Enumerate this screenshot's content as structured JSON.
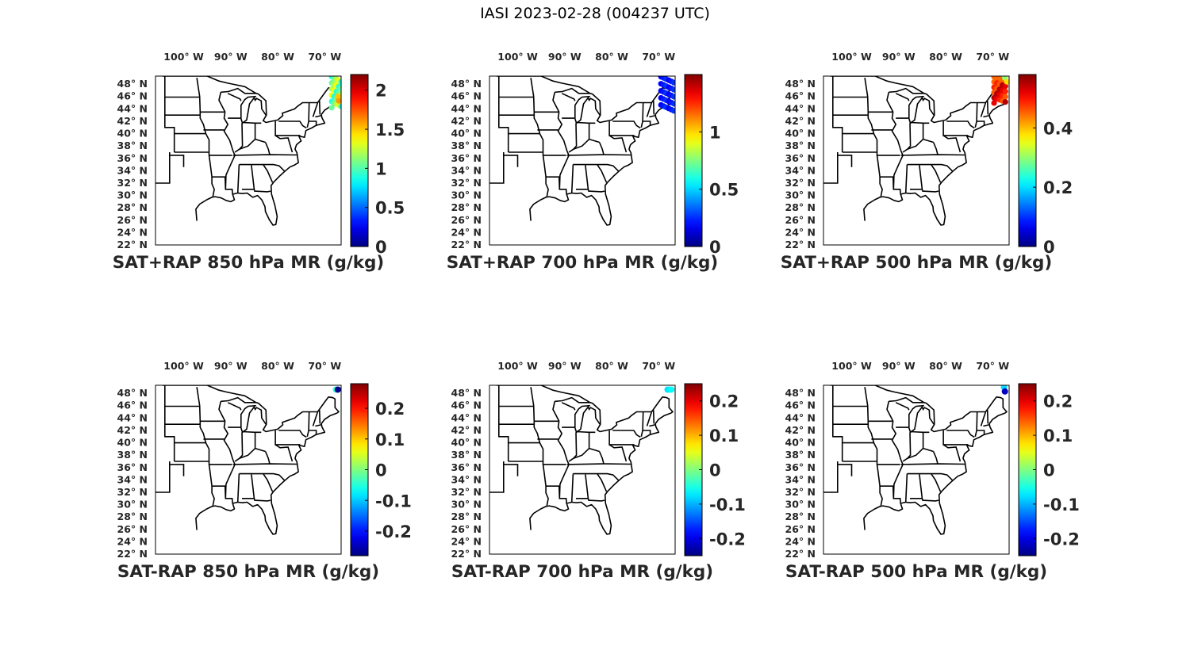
{
  "figure_title": "IASI 2023-02-28 (004237 UTC)",
  "lon_ticks": [
    "100° W",
    "90° W",
    "80° W",
    "70° W"
  ],
  "lat_ticks": [
    "48° N",
    "46° N",
    "44° N",
    "42° N",
    "40° N",
    "38° N",
    "36° N",
    "34° N",
    "32° N",
    "30° N",
    "28° N",
    "26° N",
    "24° N",
    "22° N"
  ],
  "colormap": "jet",
  "panels": [
    {
      "title": "SAT+RAP 850 hPa MR (g/kg)",
      "clim": [
        0,
        2.2
      ],
      "cb_ticks": [
        0,
        0.5,
        1,
        1.5,
        2
      ],
      "cb_labels": [
        "0",
        "0.5",
        "1",
        "1.5",
        "2"
      ]
    },
    {
      "title": "SAT+RAP 700 hPa MR (g/kg)",
      "clim": [
        0,
        1.5
      ],
      "cb_ticks": [
        0,
        0.5,
        1
      ],
      "cb_labels": [
        "0",
        "0.5",
        "1"
      ]
    },
    {
      "title": "SAT+RAP 500 hPa MR (g/kg)",
      "clim": [
        0,
        0.58
      ],
      "cb_ticks": [
        0,
        0.2,
        0.4
      ],
      "cb_labels": [
        "0",
        "0.2",
        "0.4"
      ]
    },
    {
      "title": "SAT-RAP 850 hPa MR (g/kg)",
      "clim": [
        -0.28,
        0.28
      ],
      "cb_ticks": [
        -0.2,
        -0.1,
        0,
        0.1,
        0.2
      ],
      "cb_labels": [
        "-0.2",
        "-0.1",
        "0",
        "0.1",
        "0.2"
      ]
    },
    {
      "title": "SAT-RAP 700 hPa MR (g/kg)",
      "clim": [
        -0.25,
        0.25
      ],
      "cb_ticks": [
        -0.2,
        -0.1,
        0,
        0.1,
        0.2
      ],
      "cb_labels": [
        "-0.2",
        "-0.1",
        "0",
        "0.1",
        "0.2"
      ]
    },
    {
      "title": "SAT-RAP 500 hPa MR (g/kg)",
      "clim": [
        -0.25,
        0.25
      ],
      "cb_ticks": [
        -0.2,
        -0.1,
        0,
        0.1,
        0.2
      ],
      "cb_labels": [
        "-0.2",
        "-0.1",
        "0",
        "0.1",
        "0.2"
      ]
    }
  ]
}
